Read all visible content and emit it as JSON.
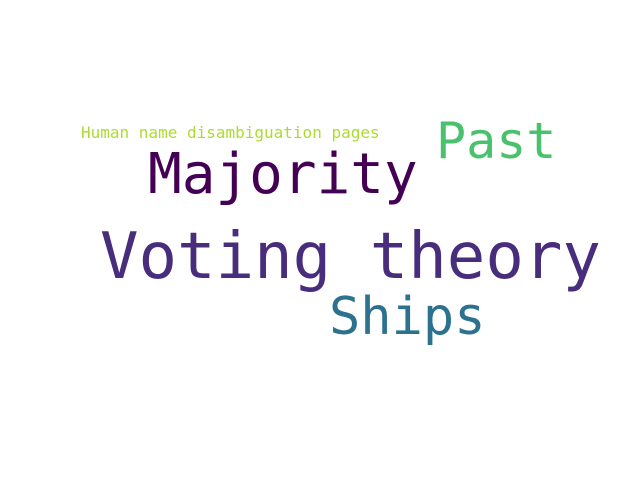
{
  "word_cloud": {
    "words": [
      {
        "text": "Human name disambiguation pages",
        "color": "#addc30"
      },
      {
        "text": "Past",
        "color": "#4ac16d"
      },
      {
        "text": "Majority",
        "color": "#440154"
      },
      {
        "text": "Voting theory",
        "color": "#472d7b"
      },
      {
        "text": "Ships",
        "color": "#2c728e"
      }
    ]
  }
}
